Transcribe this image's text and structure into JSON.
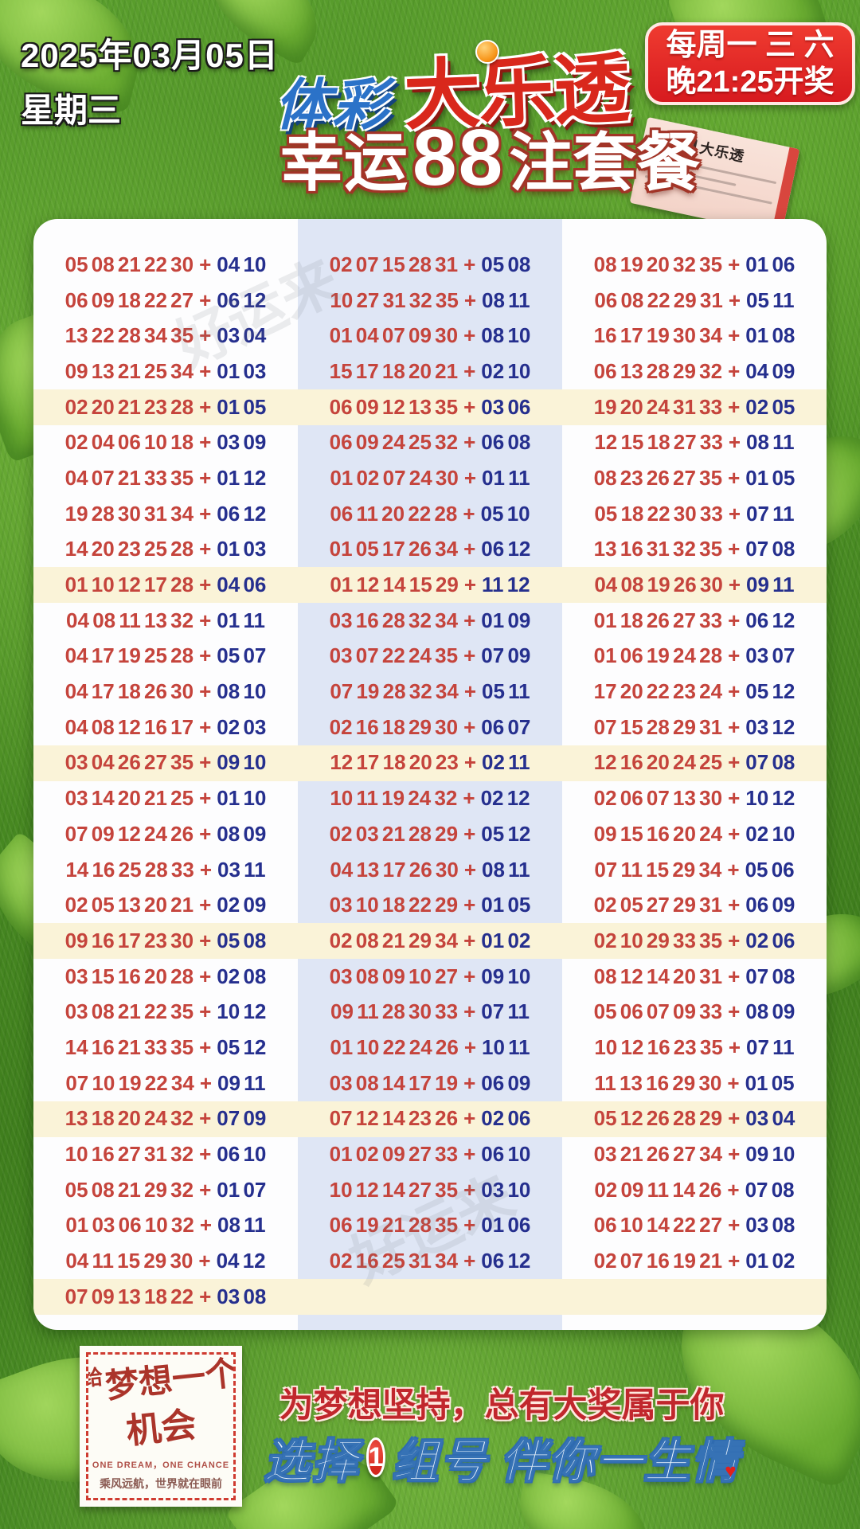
{
  "header": {
    "date": "2025年03月05日",
    "weekday": "星期三",
    "logo_part1": "体彩",
    "logo_part2": "大乐透",
    "schedule_line1": "每周一 三 六",
    "schedule_line2": "晚21:25开奖",
    "title_prefix": "幸运",
    "title_count": "88",
    "title_suffix": "注套餐",
    "ticket_brand": "体彩",
    "ticket_super": "超级",
    "ticket_name": "大乐透"
  },
  "board": {
    "plus_sign": "+",
    "watermark": "好运来",
    "highlight_every": 5,
    "columns": [
      {
        "rows": [
          {
            "front": "05 08 21 22 30",
            "back": "04 10"
          },
          {
            "front": "06 09 18 22 27",
            "back": "06 12"
          },
          {
            "front": "13 22 28 34 35",
            "back": "03 04"
          },
          {
            "front": "09 13 21 25 34",
            "back": "01 03"
          },
          {
            "front": "02 20 21 23 28",
            "back": "01 05"
          },
          {
            "front": "02 04 06 10 18",
            "back": "03 09"
          },
          {
            "front": "04 07 21 33 35",
            "back": "01 12"
          },
          {
            "front": "19 28 30 31 34",
            "back": "06 12"
          },
          {
            "front": "14 20 23 25 28",
            "back": "01 03"
          },
          {
            "front": "01 10 12 17 28",
            "back": "04 06"
          },
          {
            "front": "04 08 11 13 32",
            "back": "01 11"
          },
          {
            "front": "04 17 19 25 28",
            "back": "05 07"
          },
          {
            "front": "04 17 18 26 30",
            "back": "08 10"
          },
          {
            "front": "04 08 12 16 17",
            "back": "02 03"
          },
          {
            "front": "03 04 26 27 35",
            "back": "09 10"
          },
          {
            "front": "03 14 20 21 25",
            "back": "01 10"
          },
          {
            "front": "07 09 12 24 26",
            "back": "08 09"
          },
          {
            "front": "14 16 25 28 33",
            "back": "03 11"
          },
          {
            "front": "02 05 13 20 21",
            "back": "02 09"
          },
          {
            "front": "09 16 17 23 30",
            "back": "05 08"
          },
          {
            "front": "03 15 16 20 28",
            "back": "02 08"
          },
          {
            "front": "03 08 21 22 35",
            "back": "10 12"
          },
          {
            "front": "14 16 21 33 35",
            "back": "05 12"
          },
          {
            "front": "07 10 19 22 34",
            "back": "09 11"
          },
          {
            "front": "13 18 20 24 32",
            "back": "07 09"
          },
          {
            "front": "10 16 27 31 32",
            "back": "06 10"
          },
          {
            "front": "05 08 21 29 32",
            "back": "01 07"
          },
          {
            "front": "01 03 06 10 32",
            "back": "08 11"
          },
          {
            "front": "04 11 15 29 30",
            "back": "04 12"
          },
          {
            "front": "07 09 13 18 22",
            "back": "03 08"
          }
        ]
      },
      {
        "rows": [
          {
            "front": "02 07 15 28 31",
            "back": "05 08"
          },
          {
            "front": "10 27 31 32 35",
            "back": "08 11"
          },
          {
            "front": "01 04 07 09 30",
            "back": "08 10"
          },
          {
            "front": "15 17 18 20 21",
            "back": "02 10"
          },
          {
            "front": "06 09 12 13 35",
            "back": "03 06"
          },
          {
            "front": "06 09 24 25 32",
            "back": "06 08"
          },
          {
            "front": "01 02 07 24 30",
            "back": "01 11"
          },
          {
            "front": "06 11 20 22 28",
            "back": "05 10"
          },
          {
            "front": "01 05 17 26 34",
            "back": "06 12"
          },
          {
            "front": "01 12 14 15 29",
            "back": "11 12"
          },
          {
            "front": "03 16 28 32 34",
            "back": "01 09"
          },
          {
            "front": "03 07 22 24 35",
            "back": "07 09"
          },
          {
            "front": "07 19 28 32 34",
            "back": "05 11"
          },
          {
            "front": "02 16 18 29 30",
            "back": "06 07"
          },
          {
            "front": "12 17 18 20 23",
            "back": "02 11"
          },
          {
            "front": "10 11 19 24 32",
            "back": "02 12"
          },
          {
            "front": "02 03 21 28 29",
            "back": "05 12"
          },
          {
            "front": "04 13 17 26 30",
            "back": "08 11"
          },
          {
            "front": "03 10 18 22 29",
            "back": "01 05"
          },
          {
            "front": "02 08 21 29 34",
            "back": "01 02"
          },
          {
            "front": "03 08 09 10 27",
            "back": "09 10"
          },
          {
            "front": "09 11 28 30 33",
            "back": "07 11"
          },
          {
            "front": "01 10 22 24 26",
            "back": "10 11"
          },
          {
            "front": "03 08 14 17 19",
            "back": "06 09"
          },
          {
            "front": "07 12 14 23 26",
            "back": "02 06"
          },
          {
            "front": "01 02 09 27 33",
            "back": "06 10"
          },
          {
            "front": "10 12 14 27 35",
            "back": "03 10"
          },
          {
            "front": "06 19 21 28 35",
            "back": "01 06"
          },
          {
            "front": "02 16 25 31 34",
            "back": "06 12"
          }
        ]
      },
      {
        "rows": [
          {
            "front": "08 19 20 32 35",
            "back": "01 06"
          },
          {
            "front": "06 08 22 29 31",
            "back": "05 11"
          },
          {
            "front": "16 17 19 30 34",
            "back": "01 08"
          },
          {
            "front": "06 13 28 29 32",
            "back": "04 09"
          },
          {
            "front": "19 20 24 31 33",
            "back": "02 05"
          },
          {
            "front": "12 15 18 27 33",
            "back": "08 11"
          },
          {
            "front": "08 23 26 27 35",
            "back": "01 05"
          },
          {
            "front": "05 18 22 30 33",
            "back": "07 11"
          },
          {
            "front": "13 16 31 32 35",
            "back": "07 08"
          },
          {
            "front": "04 08 19 26 30",
            "back": "09 11"
          },
          {
            "front": "01 18 26 27 33",
            "back": "06 12"
          },
          {
            "front": "01 06 19 24 28",
            "back": "03 07"
          },
          {
            "front": "17 20 22 23 24",
            "back": "05 12"
          },
          {
            "front": "07 15 28 29 31",
            "back": "03 12"
          },
          {
            "front": "12 16 20 24 25",
            "back": "07 08"
          },
          {
            "front": "02 06 07 13 30",
            "back": "10 12"
          },
          {
            "front": "09 15 16 20 24",
            "back": "02 10"
          },
          {
            "front": "07 11 15 29 34",
            "back": "05 06"
          },
          {
            "front": "02 05 27 29 31",
            "back": "06 09"
          },
          {
            "front": "02 10 29 33 35",
            "back": "02 06"
          },
          {
            "front": "08 12 14 20 31",
            "back": "07 08"
          },
          {
            "front": "05 06 07 09 33",
            "back": "08 09"
          },
          {
            "front": "10 12 16 23 35",
            "back": "07 11"
          },
          {
            "front": "11 13 16 29 30",
            "back": "01 05"
          },
          {
            "front": "05 12 26 28 29",
            "back": "03 04"
          },
          {
            "front": "03 21 26 27 34",
            "back": "09 10"
          },
          {
            "front": "02 09 11 14 26",
            "back": "07 08"
          },
          {
            "front": "06 10 14 22 27",
            "back": "03 08"
          },
          {
            "front": "02 07 16 19 21",
            "back": "01 02"
          }
        ]
      }
    ]
  },
  "footer": {
    "stamp_give": "给",
    "stamp_line1": "梦想一个",
    "stamp_line2": "机会",
    "stamp_en": "ONE DREAM，ONE CHANCE",
    "stamp_sub": "乘风远航，世界就在眼前",
    "slogan_red": "为梦想坚持，总有大奖属于你",
    "slogan_blue_part1": "选择",
    "slogan_blue_badge": "1",
    "slogan_blue_part2": "组号",
    "slogan_blue_part3": "伴你一生情",
    "heart": "♥"
  },
  "colors": {
    "front_number": "#c5443c",
    "back_number": "#252f8e",
    "stripe": "#faf3d8",
    "column_band": "#dfe6f5",
    "badge_red": "#d71a1f",
    "logo_blue": "#2b72c8",
    "logo_red": "#d9281c",
    "slogan_red": "#c1272d",
    "slogan_blue": "#2f6bb0"
  }
}
